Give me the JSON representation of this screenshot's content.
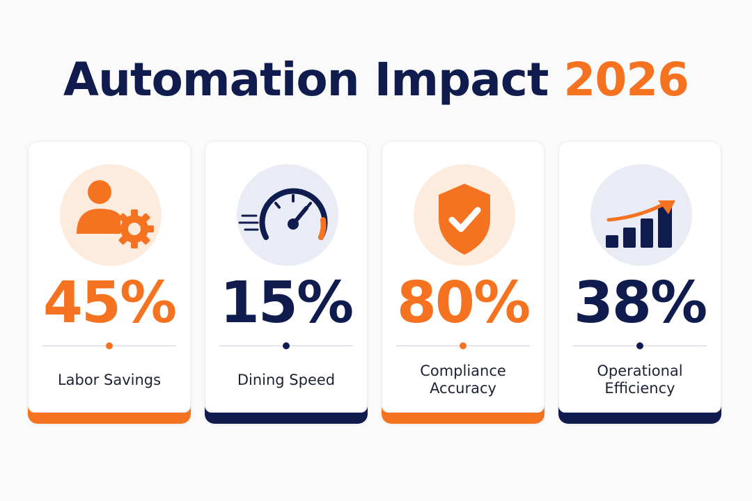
{
  "title": {
    "main": "Automation Impact",
    "year": "2026"
  },
  "colors": {
    "orange": "#f57220",
    "navy": "#0f1c4d"
  },
  "cards": [
    {
      "icon": "user-gear-icon",
      "value": "45%",
      "label": "Labor Savings"
    },
    {
      "icon": "speedometer-icon",
      "value": "15%",
      "label": "Dining Speed"
    },
    {
      "icon": "shield-check-icon",
      "value": "80%",
      "label": "Compliance Accuracy"
    },
    {
      "icon": "growth-chart-icon",
      "value": "38%",
      "label": "Operational Efficiency"
    }
  ]
}
